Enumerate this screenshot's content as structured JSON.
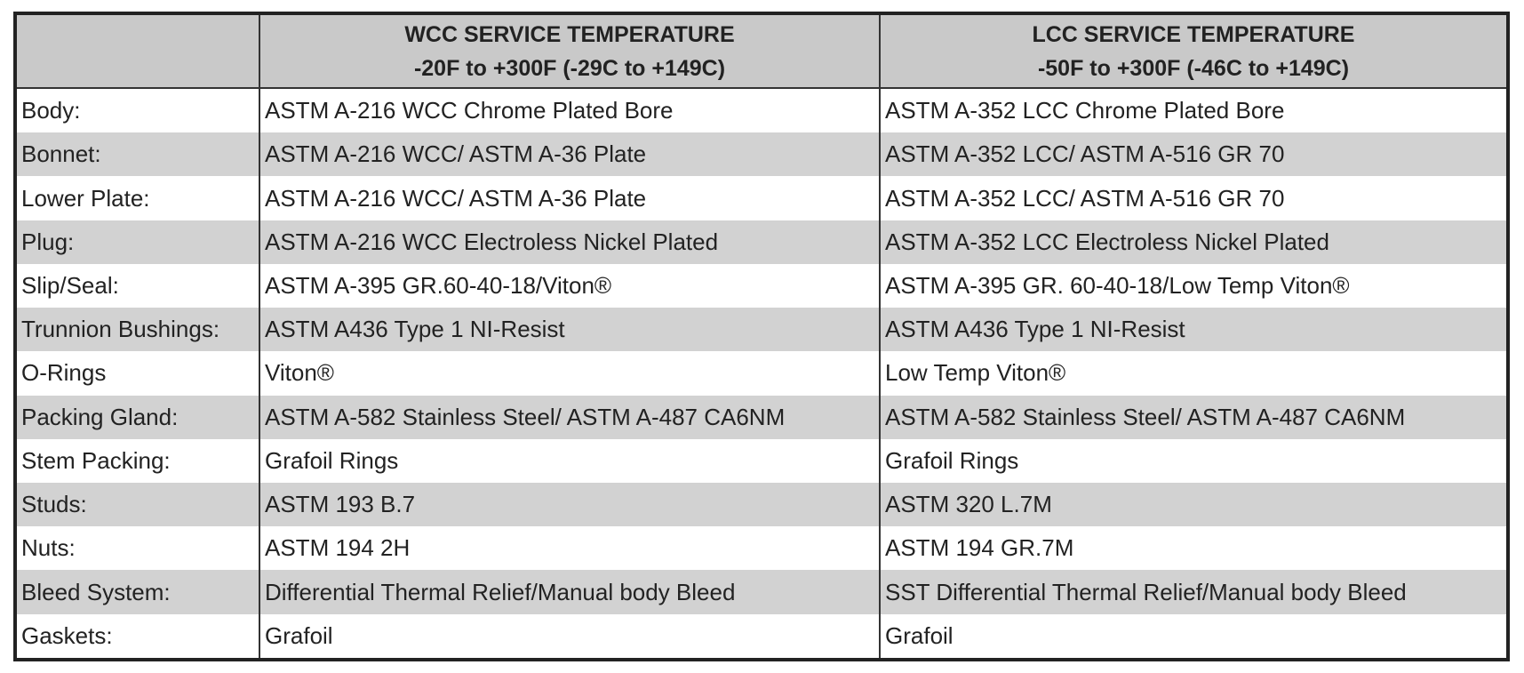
{
  "table": {
    "columns": [
      {
        "title": "WCC SERVICE TEMPERATURE",
        "subtitle": "-20F to +300F (-29C to +149C)"
      },
      {
        "title": "LCC SERVICE TEMPERATURE",
        "subtitle": "-50F to +300F (-46C to +149C)"
      }
    ],
    "rows": [
      [
        "Body:",
        "ASTM A-216 WCC Chrome Plated Bore",
        "ASTM A-352 LCC Chrome Plated Bore"
      ],
      [
        "Bonnet:",
        "ASTM A-216 WCC/ ASTM A-36 Plate",
        "ASTM A-352 LCC/ ASTM A-516 GR 70"
      ],
      [
        "Lower Plate:",
        "ASTM A-216 WCC/ ASTM A-36 Plate",
        "ASTM A-352 LCC/ ASTM A-516 GR 70"
      ],
      [
        "Plug:",
        "ASTM A-216 WCC Electroless Nickel Plated",
        "ASTM A-352 LCC Electroless Nickel Plated"
      ],
      [
        "Slip/Seal:",
        "ASTM A-395 GR.60-40-18/Viton®",
        "ASTM A-395 GR. 60-40-18/Low Temp Viton®"
      ],
      [
        "Trunnion Bushings:",
        "ASTM A436 Type 1 NI-Resist",
        "ASTM A436 Type 1 NI-Resist"
      ],
      [
        "O-Rings",
        "Viton®",
        "Low Temp Viton®"
      ],
      [
        "Packing Gland:",
        "ASTM A-582 Stainless Steel/ ASTM A-487 CA6NM",
        "ASTM A-582 Stainless Steel/ ASTM A-487 CA6NM"
      ],
      [
        "Stem Packing:",
        "Grafoil Rings",
        "Grafoil Rings"
      ],
      [
        "Studs:",
        "ASTM 193 B.7",
        "ASTM 320 L.7M"
      ],
      [
        "Nuts:",
        "ASTM 194 2H",
        "ASTM 194 GR.7M"
      ],
      [
        "Bleed System:",
        "Differential Thermal Relief/Manual body Bleed",
        "SST Differential Thermal Relief/Manual body Bleed"
      ],
      [
        "Gaskets:",
        "Grafoil",
        "Grafoil"
      ]
    ]
  }
}
